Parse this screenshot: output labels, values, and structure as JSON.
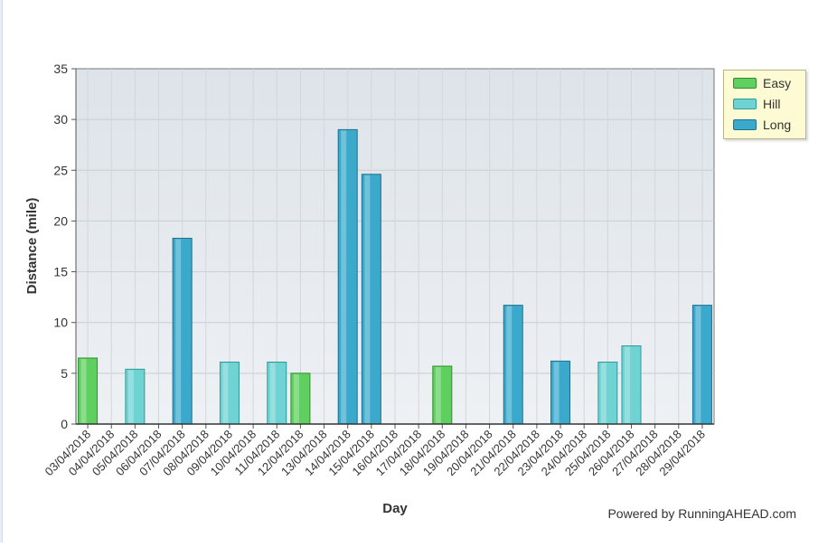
{
  "chart_data": {
    "type": "bar",
    "xlabel": "Day",
    "ylabel": "Distance (mile)",
    "ylim": [
      0,
      35
    ],
    "yticks": [
      0,
      5,
      10,
      15,
      20,
      25,
      30,
      35
    ],
    "grid": true,
    "legend_position": "top-right",
    "categories": [
      "03/04/2018",
      "04/04/2018",
      "05/04/2018",
      "06/04/2018",
      "07/04/2018",
      "08/04/2018",
      "09/04/2018",
      "10/04/2018",
      "11/04/2018",
      "12/04/2018",
      "13/04/2018",
      "14/04/2018",
      "15/04/2018",
      "16/04/2018",
      "17/04/2018",
      "18/04/2018",
      "19/04/2018",
      "20/04/2018",
      "21/04/2018",
      "22/04/2018",
      "23/04/2018",
      "24/04/2018",
      "25/04/2018",
      "26/04/2018",
      "27/04/2018",
      "28/04/2018",
      "29/04/2018"
    ],
    "series": [
      {
        "name": "Easy",
        "color": "#5fcf5f",
        "values": [
          6.5,
          0,
          0,
          0,
          0,
          0,
          0,
          0,
          0,
          5.0,
          0,
          0,
          0,
          0,
          0,
          5.7,
          0,
          0,
          0,
          0,
          0,
          0,
          0,
          0,
          0,
          0,
          0
        ]
      },
      {
        "name": "Hill",
        "color": "#6fd3d3",
        "values": [
          0,
          0,
          5.4,
          0,
          0,
          0,
          6.1,
          0,
          6.1,
          0,
          0,
          0,
          0,
          0,
          0,
          0,
          0,
          0,
          0,
          0,
          0,
          0,
          6.1,
          7.7,
          0,
          0,
          0
        ]
      },
      {
        "name": "Long",
        "color": "#3aa9cc",
        "values": [
          0,
          0,
          0,
          0,
          18.3,
          0,
          0,
          0,
          0,
          0,
          0,
          29.0,
          24.6,
          0,
          0,
          0,
          0,
          0,
          11.7,
          0,
          6.2,
          0,
          0,
          0,
          0,
          0,
          11.7
        ]
      }
    ]
  },
  "footer": {
    "text": "Powered by RunningAHEAD.com"
  }
}
